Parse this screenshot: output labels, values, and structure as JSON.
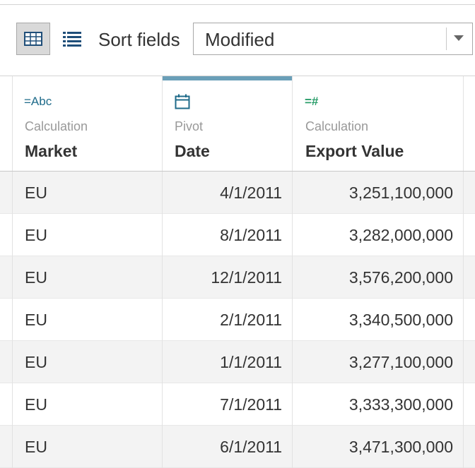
{
  "toolbar": {
    "grid_view_icon": "grid-view-icon",
    "list_view_icon": "list-view-icon",
    "sort_label": "Sort fields",
    "sort_value": "Modified"
  },
  "columns": [
    {
      "icon": "",
      "type_label": "",
      "name": ""
    },
    {
      "icon": "=Abc",
      "type_label": "Calculation",
      "name": "Market"
    },
    {
      "icon": "calendar",
      "type_label": "Pivot",
      "name": "Date"
    },
    {
      "icon": "=#",
      "type_label": "Calculation",
      "name": "Export Value"
    }
  ],
  "rows": [
    {
      "market": "EU",
      "date": "4/1/2011",
      "export_value": "3,251,100,000"
    },
    {
      "market": "EU",
      "date": "8/1/2011",
      "export_value": "3,282,000,000"
    },
    {
      "market": "EU",
      "date": "12/1/2011",
      "export_value": "3,576,200,000"
    },
    {
      "market": "EU",
      "date": "2/1/2011",
      "export_value": "3,340,500,000"
    },
    {
      "market": "EU",
      "date": "1/1/2011",
      "export_value": "3,277,100,000"
    },
    {
      "market": "EU",
      "date": "7/1/2011",
      "export_value": "3,333,300,000"
    },
    {
      "market": "EU",
      "date": "6/1/2011",
      "export_value": "3,471,300,000"
    }
  ],
  "colors": {
    "active_column_accent": "#6a9fb8",
    "string_icon": "#1f6b8a",
    "number_icon": "#2a9d6a",
    "calendar_icon": "#1f6b8a",
    "odd_row": "#f3f3f3"
  }
}
